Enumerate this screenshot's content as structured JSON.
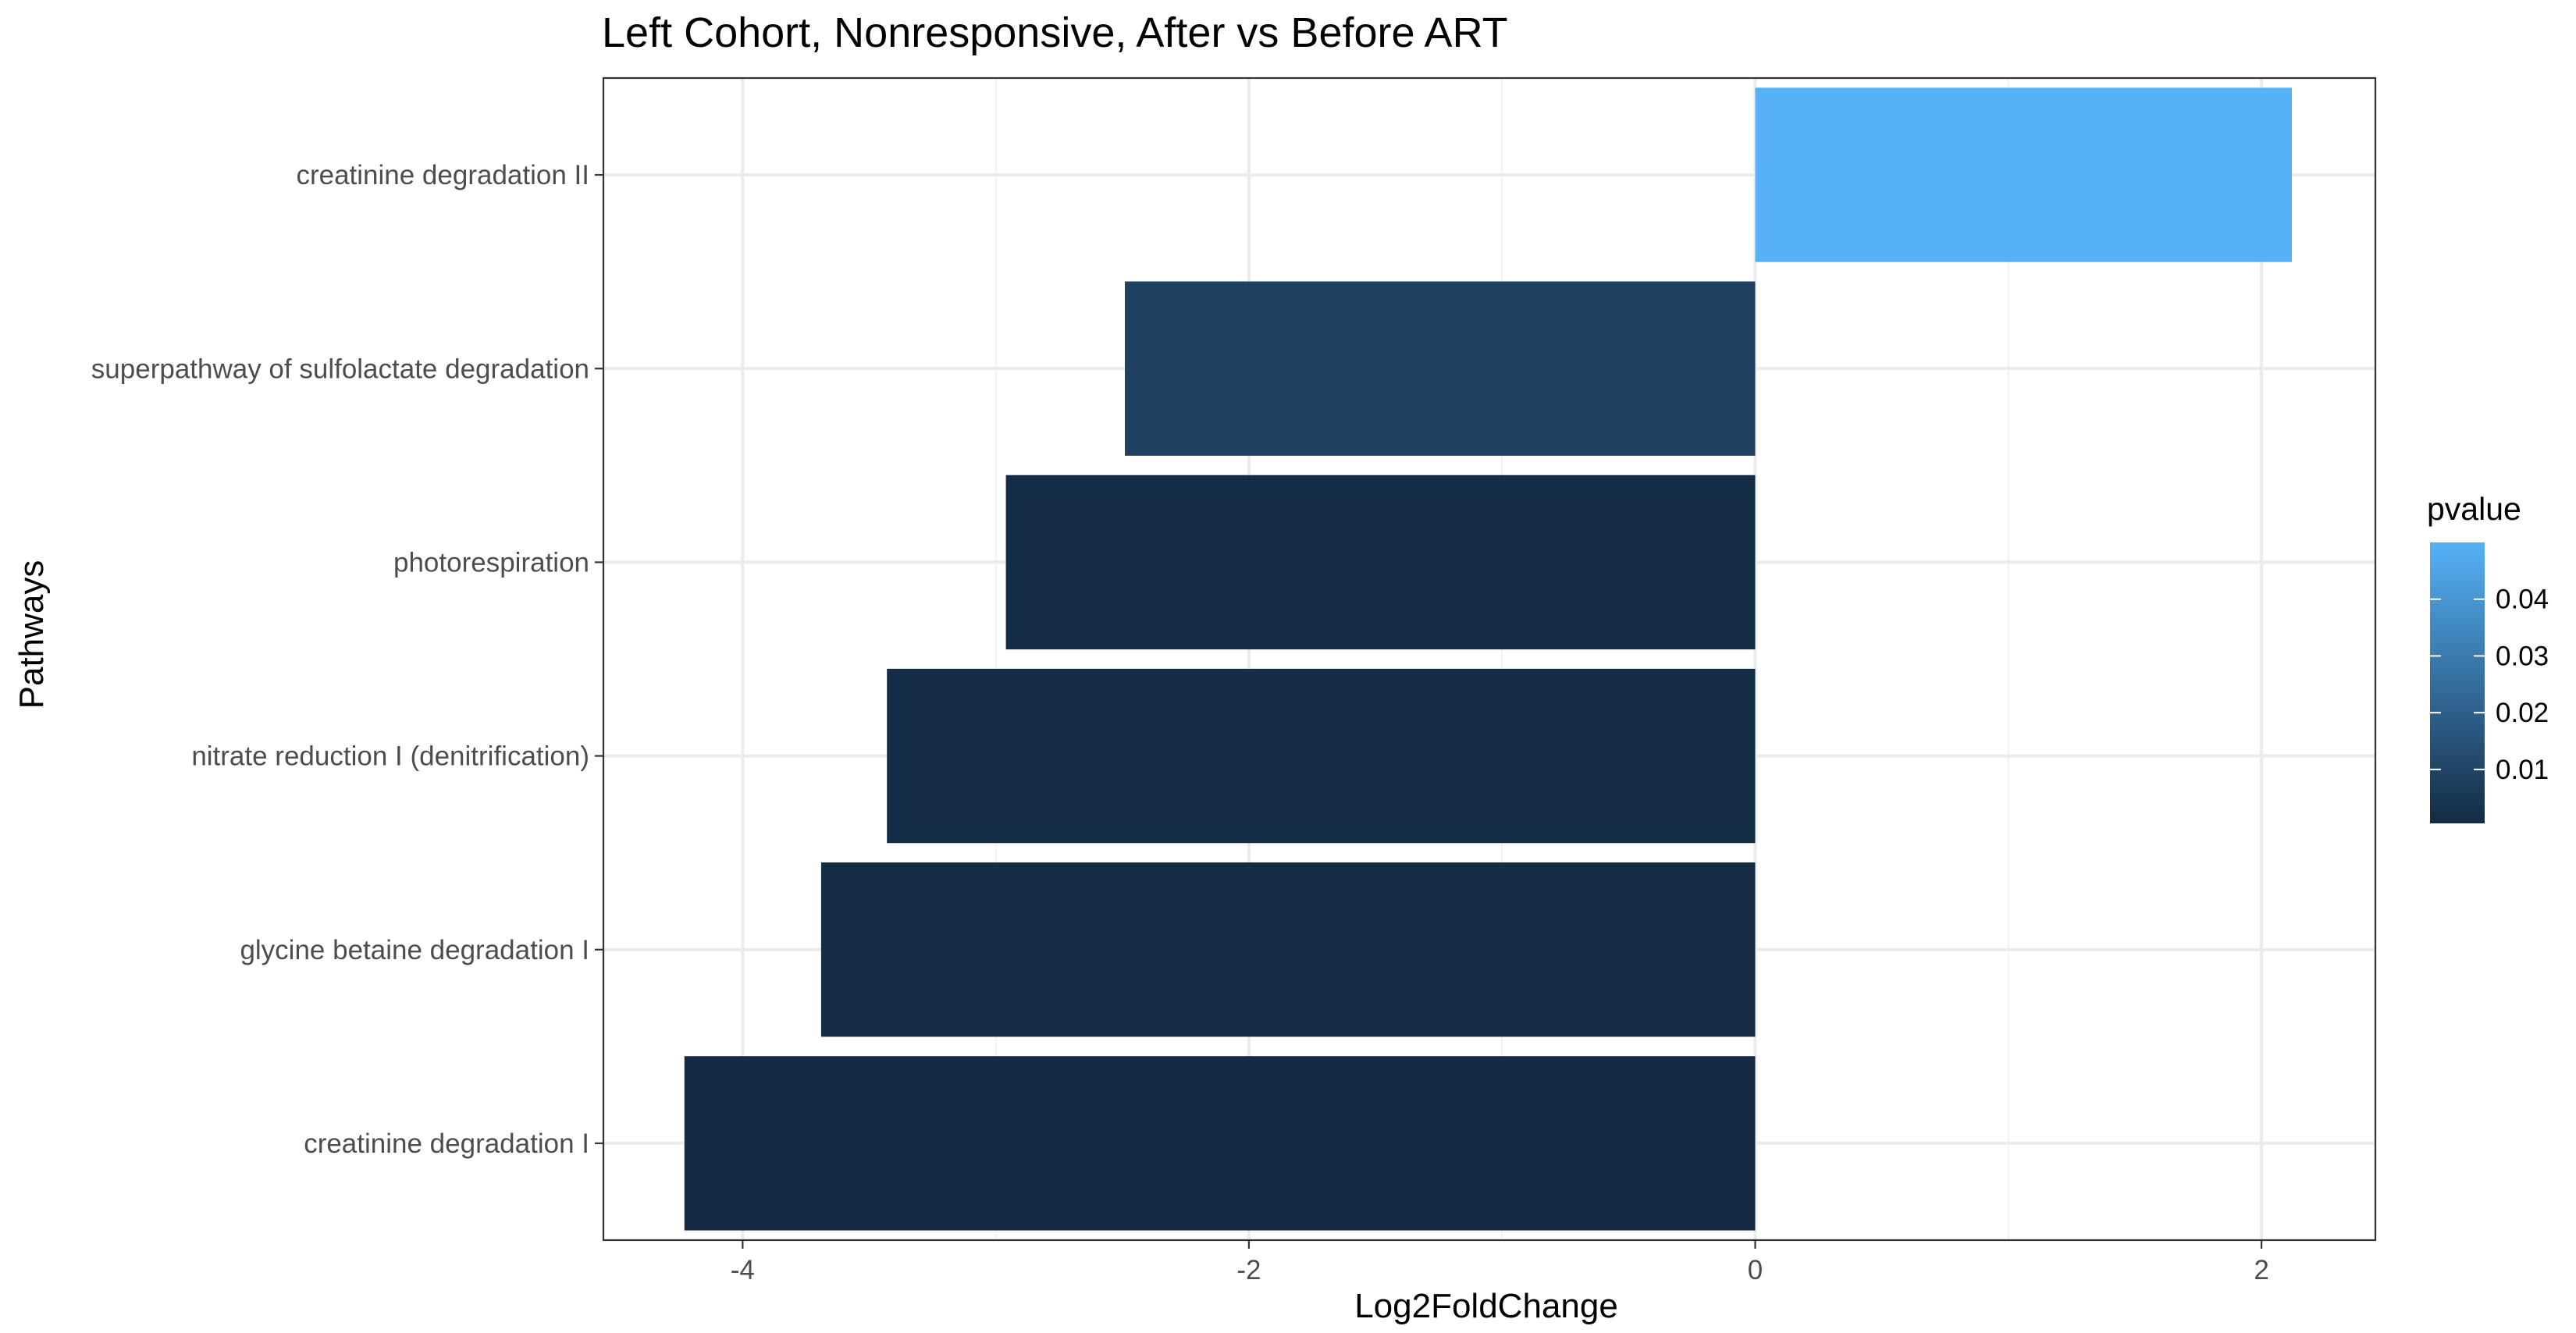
{
  "chart_data": {
    "type": "bar",
    "orientation": "horizontal",
    "title": "Left Cohort, Nonresponsive, After vs Before ART",
    "xlabel": "Log2FoldChange",
    "ylabel": "Pathways",
    "xlim": [
      -4.55,
      2.45
    ],
    "x_ticks": [
      -4,
      -2,
      0,
      2
    ],
    "x_tick_labels": [
      "-4",
      "-2",
      "0",
      "2"
    ],
    "grid": true,
    "categories": [
      "creatinine degradation II",
      "superpathway of sulfolactate degradation",
      "photorespiration",
      "nitrate reduction I (denitrification)",
      "glycine betaine degradation I",
      "creatinine degradation I"
    ],
    "values": [
      2.12,
      -2.49,
      -2.96,
      -3.43,
      -3.69,
      -4.23
    ],
    "pvalues": [
      0.05,
      0.009,
      0.0015,
      0.0012,
      0.0011,
      0.0005
    ],
    "legend": {
      "title": "pvalue",
      "position": "right",
      "range": [
        0.0005,
        0.05
      ],
      "ticks": [
        0.01,
        0.02,
        0.03,
        0.04
      ],
      "tick_labels": [
        "0.01",
        "0.02",
        "0.03",
        "0.04"
      ],
      "color_low": "#132B43",
      "color_high": "#56B1F7"
    }
  }
}
